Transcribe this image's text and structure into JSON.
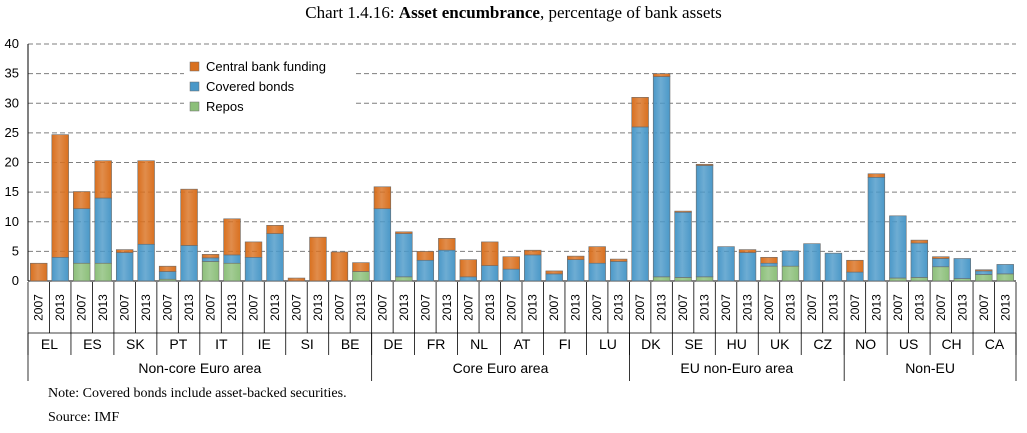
{
  "title": {
    "prefix": "Chart 1.4.16: ",
    "bold": "Asset encumbrance",
    "suffix": ", percentage of bank assets"
  },
  "footer": {
    "note": "Note: Covered bonds include asset-backed securities.",
    "source": "Source: IMF"
  },
  "colors": {
    "central_bank_funding": "#d9701f",
    "covered_bonds": "#4a98c8",
    "repos": "#8cbf7a",
    "gridline": "#7f7f7f"
  },
  "chart_data": {
    "type": "bar",
    "stacked": true,
    "title": "Asset encumbrance, percentage of bank assets",
    "ylim": [
      0,
      40
    ],
    "yticks": [
      0,
      5,
      10,
      15,
      20,
      25,
      30,
      35,
      40
    ],
    "grid": "horizontal dashed",
    "legend_position": "top-left",
    "years": [
      "2007",
      "2013"
    ],
    "legend": [
      "Central bank funding",
      "Covered bonds",
      "Repos"
    ],
    "groups": [
      {
        "name": "Non-core Euro area",
        "countries": [
          "EL",
          "ES",
          "SK",
          "PT",
          "IT",
          "IE",
          "SI",
          "BE"
        ]
      },
      {
        "name": "Core Euro area",
        "countries": [
          "DE",
          "FR",
          "NL",
          "AT",
          "FI",
          "LU"
        ]
      },
      {
        "name": "EU non-Euro area",
        "countries": [
          "DK",
          "SE",
          "HU",
          "UK",
          "CZ"
        ]
      },
      {
        "name": "Non-EU",
        "countries": [
          "NO",
          "US",
          "CH",
          "CA"
        ]
      }
    ],
    "bars": [
      {
        "country": "EL",
        "year": "2007",
        "repos": 0,
        "covered_bonds": 0,
        "central_bank_funding": 3
      },
      {
        "country": "EL",
        "year": "2013",
        "repos": 0,
        "covered_bonds": 4,
        "central_bank_funding": 20.7
      },
      {
        "country": "ES",
        "year": "2007",
        "repos": 3,
        "covered_bonds": 9.2,
        "central_bank_funding": 2.9
      },
      {
        "country": "ES",
        "year": "2013",
        "repos": 3,
        "covered_bonds": 11,
        "central_bank_funding": 6.3
      },
      {
        "country": "SK",
        "year": "2007",
        "repos": 0,
        "covered_bonds": 4.8,
        "central_bank_funding": 0.5
      },
      {
        "country": "SK",
        "year": "2013",
        "repos": 0,
        "covered_bonds": 6.2,
        "central_bank_funding": 14.1
      },
      {
        "country": "PT",
        "year": "2007",
        "repos": 0.3,
        "covered_bonds": 1.3,
        "central_bank_funding": 0.9
      },
      {
        "country": "PT",
        "year": "2013",
        "repos": 0,
        "covered_bonds": 6,
        "central_bank_funding": 9.5
      },
      {
        "country": "IT",
        "year": "2007",
        "repos": 3.3,
        "covered_bonds": 0.6,
        "central_bank_funding": 0.6
      },
      {
        "country": "IT",
        "year": "2013",
        "repos": 3,
        "covered_bonds": 1.4,
        "central_bank_funding": 6.1
      },
      {
        "country": "IE",
        "year": "2007",
        "repos": 0,
        "covered_bonds": 4,
        "central_bank_funding": 2.6
      },
      {
        "country": "IE",
        "year": "2013",
        "repos": 0,
        "covered_bonds": 8,
        "central_bank_funding": 1.4
      },
      {
        "country": "SI",
        "year": "2007",
        "repos": 0,
        "covered_bonds": 0,
        "central_bank_funding": 0.5
      },
      {
        "country": "SI",
        "year": "2013",
        "repos": 0,
        "covered_bonds": 0,
        "central_bank_funding": 7.4
      },
      {
        "country": "BE",
        "year": "2007",
        "repos": 0,
        "covered_bonds": 0,
        "central_bank_funding": 4.9
      },
      {
        "country": "BE",
        "year": "2013",
        "repos": 1.6,
        "covered_bonds": 0,
        "central_bank_funding": 1.5
      },
      {
        "country": "DE",
        "year": "2007",
        "repos": 0,
        "covered_bonds": 12.2,
        "central_bank_funding": 3.7
      },
      {
        "country": "DE",
        "year": "2013",
        "repos": 0.7,
        "covered_bonds": 7.3,
        "central_bank_funding": 0.3
      },
      {
        "country": "FR",
        "year": "2007",
        "repos": 0,
        "covered_bonds": 3.5,
        "central_bank_funding": 1.5
      },
      {
        "country": "FR",
        "year": "2013",
        "repos": 0,
        "covered_bonds": 5.2,
        "central_bank_funding": 2
      },
      {
        "country": "NL",
        "year": "2007",
        "repos": 0,
        "covered_bonds": 0.7,
        "central_bank_funding": 2.9
      },
      {
        "country": "NL",
        "year": "2013",
        "repos": 0,
        "covered_bonds": 2.6,
        "central_bank_funding": 4
      },
      {
        "country": "AT",
        "year": "2007",
        "repos": 0,
        "covered_bonds": 2,
        "central_bank_funding": 2.1
      },
      {
        "country": "AT",
        "year": "2013",
        "repos": 0,
        "covered_bonds": 4.4,
        "central_bank_funding": 0.8
      },
      {
        "country": "FI",
        "year": "2007",
        "repos": 0,
        "covered_bonds": 1.2,
        "central_bank_funding": 0.5
      },
      {
        "country": "FI",
        "year": "2013",
        "repos": 0,
        "covered_bonds": 3.6,
        "central_bank_funding": 0.6
      },
      {
        "country": "LU",
        "year": "2007",
        "repos": 0,
        "covered_bonds": 3,
        "central_bank_funding": 2.8
      },
      {
        "country": "LU",
        "year": "2013",
        "repos": 0,
        "covered_bonds": 3.3,
        "central_bank_funding": 0.4
      },
      {
        "country": "DK",
        "year": "2007",
        "repos": 0,
        "covered_bonds": 26,
        "central_bank_funding": 5
      },
      {
        "country": "DK",
        "year": "2013",
        "repos": 0.7,
        "covered_bonds": 33.8,
        "central_bank_funding": 0.5
      },
      {
        "country": "SE",
        "year": "2007",
        "repos": 0.6,
        "covered_bonds": 11,
        "central_bank_funding": 0.2
      },
      {
        "country": "SE",
        "year": "2013",
        "repos": 0.7,
        "covered_bonds": 18.8,
        "central_bank_funding": 0.2
      },
      {
        "country": "HU",
        "year": "2007",
        "repos": 0,
        "covered_bonds": 5.8,
        "central_bank_funding": 0
      },
      {
        "country": "HU",
        "year": "2013",
        "repos": 0,
        "covered_bonds": 4.8,
        "central_bank_funding": 0.5
      },
      {
        "country": "UK",
        "year": "2007",
        "repos": 2.5,
        "covered_bonds": 0.5,
        "central_bank_funding": 1
      },
      {
        "country": "UK",
        "year": "2013",
        "repos": 2.5,
        "covered_bonds": 2.6,
        "central_bank_funding": 0
      },
      {
        "country": "CZ",
        "year": "2007",
        "repos": 0,
        "covered_bonds": 6.3,
        "central_bank_funding": 0
      },
      {
        "country": "CZ",
        "year": "2013",
        "repos": 0,
        "covered_bonds": 4.7,
        "central_bank_funding": 0
      },
      {
        "country": "NO",
        "year": "2007",
        "repos": 0,
        "covered_bonds": 1.5,
        "central_bank_funding": 2
      },
      {
        "country": "NO",
        "year": "2013",
        "repos": 0,
        "covered_bonds": 17.5,
        "central_bank_funding": 0.6
      },
      {
        "country": "US",
        "year": "2007",
        "repos": 0.5,
        "covered_bonds": 10.5,
        "central_bank_funding": 0
      },
      {
        "country": "US",
        "year": "2013",
        "repos": 0.6,
        "covered_bonds": 5.8,
        "central_bank_funding": 0.5
      },
      {
        "country": "CH",
        "year": "2007",
        "repos": 2.4,
        "covered_bonds": 1.4,
        "central_bank_funding": 0.3
      },
      {
        "country": "CH",
        "year": "2013",
        "repos": 0.4,
        "covered_bonds": 3.4,
        "central_bank_funding": 0
      },
      {
        "country": "CA",
        "year": "2007",
        "repos": 1.1,
        "covered_bonds": 0.6,
        "central_bank_funding": 0.2
      },
      {
        "country": "CA",
        "year": "2013",
        "repos": 1.2,
        "covered_bonds": 1.6,
        "central_bank_funding": 0
      }
    ]
  }
}
